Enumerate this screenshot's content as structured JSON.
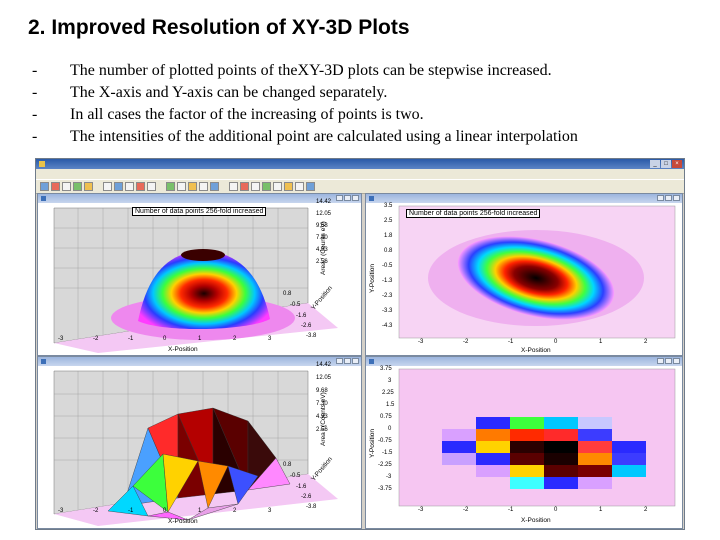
{
  "slide": {
    "title": "2. Improved Resolution of XY-3D Plots",
    "bullet_marker": "-",
    "bullets": [
      "The number of plotted points of theXY-3D plots can be stepwise increased.",
      "The X-axis and Y-axis can be changed separately.",
      "In all cases the factor of the increasing of points is two.",
      "The intensities of the additional point are calculated using a linear interpolation"
    ]
  },
  "app": {
    "window_buttons": [
      "_",
      "□",
      "×"
    ],
    "panes": {
      "top_left": {
        "annotation": "Number of data points 256-fold increased",
        "z_ticks": [
          "14.42",
          "12.05",
          "9.68",
          "7.30",
          "4.93",
          "2.56"
        ],
        "x_ticks": [
          "-3",
          "-2",
          "-1",
          "0",
          "1",
          "2",
          "3"
        ],
        "y_ticks": [
          "0.8",
          "-0.5",
          "-1.6",
          "-2.6",
          "-3.8"
        ],
        "x_label": "X-Position",
        "y_label": "Y-Position",
        "z_label": "Area / (Counts eV)"
      },
      "top_right": {
        "annotation": "Number of data points 256-fold increased",
        "y_ticks": [
          "3.5",
          "2.5",
          "1.8",
          "0.8",
          "-0.5",
          "-1.3",
          "-2.3",
          "-3.3",
          "-4.3"
        ],
        "x_ticks": [
          "-3",
          "-2",
          "-1",
          "0",
          "1",
          "2"
        ],
        "x_label": "X-Position",
        "y_label": "Y-Position"
      },
      "bottom_left": {
        "z_ticks": [
          "14.42",
          "12.05",
          "9.68",
          "7.30",
          "4.93",
          "2.56"
        ],
        "x_ticks": [
          "-3",
          "-2",
          "-1",
          "0",
          "1",
          "2",
          "3"
        ],
        "y_ticks": [
          "0.8",
          "-0.5",
          "-1.6",
          "-2.6",
          "-3.8"
        ],
        "x_label": "X-Position",
        "y_label": "Y-Position",
        "z_label": "Area / (Counts eV)"
      },
      "bottom_right": {
        "y_ticks": [
          "3.75",
          "3",
          "2.25",
          "1.5",
          "0.75",
          "0",
          "-0.75",
          "-1.5",
          "-2.25",
          "-3",
          "-3.75"
        ],
        "x_ticks": [
          "-3",
          "-2",
          "-1",
          "0",
          "1",
          "2"
        ],
        "x_label": "X-Position",
        "y_label": "Y-Position"
      }
    }
  }
}
